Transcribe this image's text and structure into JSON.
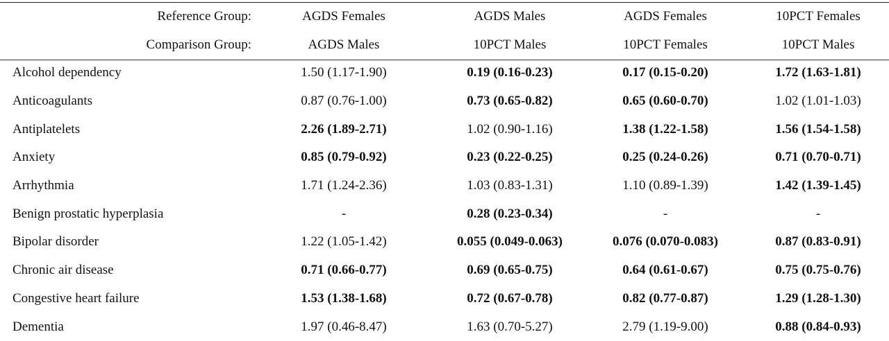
{
  "header": {
    "reference_label": "Reference Group:",
    "comparison_label": "Comparison Group:",
    "reference_groups": [
      "AGDS Females",
      "AGDS Males",
      "AGDS Females",
      "10PCT Females"
    ],
    "comparison_groups": [
      "AGDS Males",
      "10PCT Males",
      "10PCT Females",
      "10PCT Males"
    ]
  },
  "rows": [
    {
      "label": "Alcohol dependency",
      "cells": [
        "1.50 (1.17-1.90)",
        "0.19 (0.16-0.23)",
        "0.17 (0.15-0.20)",
        "1.72 (1.63-1.81)"
      ]
    },
    {
      "label": "Anticoagulants",
      "cells": [
        "0.87 (0.76-1.00)",
        "0.73 (0.65-0.82)",
        "0.65 (0.60-0.70)",
        "1.02 (1.01-1.03)"
      ]
    },
    {
      "label": "Antiplatelets",
      "cells": [
        "2.26 (1.89-2.71)",
        "1.02 (0.90-1.16)",
        "1.38 (1.22-1.58)",
        "1.56 (1.54-1.58)"
      ]
    },
    {
      "label": "Anxiety",
      "cells": [
        "0.85 (0.79-0.92)",
        "0.23 (0.22-0.25)",
        "0.25 (0.24-0.26)",
        "0.71 (0.70-0.71)"
      ]
    },
    {
      "label": "Arrhythmia",
      "cells": [
        "1.71 (1.24-2.36)",
        "1.03 (0.83-1.31)",
        "1.10 (0.89-1.39)",
        "1.42 (1.39-1.45)"
      ]
    },
    {
      "label": "Benign prostatic hyperplasia",
      "cells": [
        "-",
        "0.28 (0.23-0.34)",
        "-",
        "-"
      ]
    },
    {
      "label": "Bipolar disorder",
      "cells": [
        "1.22 (1.05-1.42)",
        "0.055 (0.049-0.063)",
        "0.076 (0.070-0.083)",
        "0.87 (0.83-0.91)"
      ]
    },
    {
      "label": "Chronic air disease",
      "cells": [
        "0.71 (0.66-0.77)",
        "0.69 (0.65-0.75)",
        "0.64 (0.61-0.67)",
        "0.75 (0.75-0.76)"
      ]
    },
    {
      "label": "Congestive heart failure",
      "cells": [
        "1.53 (1.38-1.68)",
        "0.72 (0.67-0.78)",
        "0.82 (0.77-0.87)",
        "1.29 (1.28-1.30)"
      ]
    },
    {
      "label": "Dementia",
      "cells": [
        "1.97 (0.46-8.47)",
        "1.63 (0.70-5.27)",
        "2.79 (1.19-9.00)",
        "0.88 (0.84-0.93)"
      ]
    }
  ]
}
